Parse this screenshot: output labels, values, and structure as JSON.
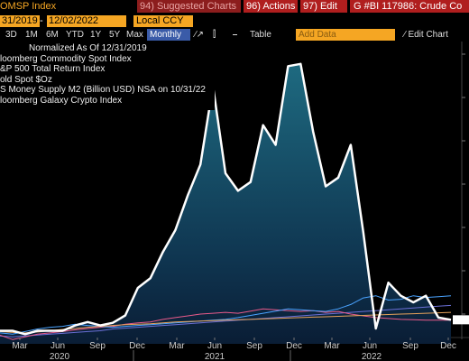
{
  "toolbar": {
    "ticker": "OMSP Index",
    "suggested": "94) Suggested Charts",
    "actions": "96) Actions",
    "edit": "97) Edit",
    "chart_title": "G #BI 117986: Crude Co"
  },
  "range": {
    "start": "31/2019",
    "end": "12/02/2022",
    "currency": "Local CCY"
  },
  "periods": [
    "3D",
    "1M",
    "6M",
    "YTD",
    "1Y",
    "5Y",
    "Max"
  ],
  "frequency": "Monthly",
  "tools": {
    "table": "Table",
    "add_data": "Add Data",
    "edit_chart": "Edit Chart"
  },
  "legend": {
    "header": "Normalized As Of 12/31/2019",
    "items": [
      "loomberg Commodity Spot Index",
      "&P 500 Total Return Index",
      "old Spot $Oz",
      "S Money Supply M2 (Billion USD) NSA on 10/31/22",
      "loomberg Galaxy Crypto Index"
    ]
  },
  "chart_data": {
    "type": "area",
    "x_ticks": [
      "Mar",
      "Jun",
      "Sep",
      "Dec",
      "Mar",
      "Jun",
      "Sep",
      "Dec",
      "Mar",
      "Jun",
      "Sep",
      "Dec"
    ],
    "years": [
      "2020",
      "2021",
      "2022"
    ],
    "series": [
      {
        "values": [
          100,
          100,
          92,
          100,
          100,
          100,
          112,
          120,
          112,
          118,
          135,
          198,
          220,
          280,
          330,
          410,
          480,
          660,
          460,
          420,
          440,
          570,
          525,
          705,
          710,
          555,
          430,
          450,
          525,
          325,
          105,
          210,
          180,
          165,
          180,
          130,
          125
        ],
        "color": "#ffffff"
      },
      {
        "values": [
          88,
          86,
          88,
          90,
          92,
          94,
          96,
          98,
          100,
          104,
          106,
          108,
          110,
          112,
          114,
          116,
          118,
          120,
          122,
          124,
          126,
          128,
          130,
          132,
          134,
          136,
          138,
          140,
          142,
          144,
          146,
          148,
          150,
          152,
          154,
          156,
          158
        ],
        "color": "#6a6fd6"
      },
      {
        "values": [
          90,
          80,
          86,
          92,
          95,
          98,
          102,
          105,
          108,
          110,
          115,
          118,
          120,
          126,
          130,
          134,
          138,
          140,
          142,
          140,
          145,
          150,
          148,
          146,
          144,
          146,
          142,
          144,
          138,
          134,
          130,
          128,
          126,
          125,
          124,
          124,
          124
        ],
        "color": "#e85a8a"
      },
      {
        "values": [
          95,
          92,
          98,
          104,
          108,
          110,
          115,
          112,
          110,
          108,
          110,
          112,
          114,
          116,
          118,
          120,
          122,
          124,
          126,
          130,
          135,
          140,
          145,
          150,
          148,
          146,
          144,
          150,
          160,
          175,
          180,
          170,
          172,
          180,
          176,
          178,
          180
        ],
        "color": "#4aa3ff"
      },
      {
        "values": [
          98,
          96,
          95,
          97,
          100,
          103,
          105,
          108,
          110,
          112,
          114,
          115,
          116,
          118,
          120,
          121,
          122,
          123,
          124,
          125,
          126,
          127,
          128,
          129,
          130,
          131,
          132,
          133,
          134,
          135,
          136,
          137,
          138,
          139,
          140,
          141,
          142
        ],
        "color": "#e6a25a"
      }
    ]
  }
}
